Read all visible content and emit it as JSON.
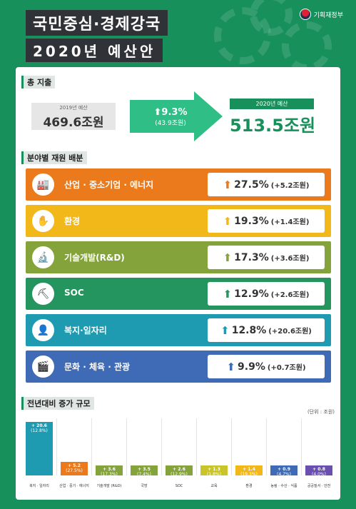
{
  "header": {
    "title_line1": "국민중심·경제강국",
    "title_line2": "2020년 예산안",
    "ministry": "기획재정부"
  },
  "total": {
    "section_label": "총 지출",
    "prev_label": "2019년 예산",
    "prev_value": "469.6조원",
    "change_pct": "9.3%",
    "change_amt": "(43.9조원)",
    "curr_label": "2020년 예산",
    "curr_value": "513.5조원"
  },
  "sectors_label": "분야별 재원 배분",
  "categories": [
    {
      "name": "산업 · 중소기업 · 에너지",
      "pct": "27.5%",
      "amt": "(+5.2조원)",
      "color": "#ea7a1b",
      "icon": "factory-icon"
    },
    {
      "name": "환경",
      "pct": "19.3%",
      "amt": "(+1.4조원)",
      "color": "#f2b81a",
      "icon": "leaf-hand-icon"
    },
    {
      "name": "기술개발(R&D)",
      "pct": "17.3%",
      "amt": "(+3.6조원)",
      "color": "#84a33b",
      "icon": "microscope-icon"
    },
    {
      "name": "SOC",
      "pct": "12.9%",
      "amt": "(+2.6조원)",
      "color": "#24955e",
      "icon": "excavator-icon"
    },
    {
      "name": "복지·일자리",
      "pct": "12.8%",
      "amt": "(+20.6조원)",
      "color": "#1e9bb0",
      "icon": "person-icon"
    },
    {
      "name": "문화 · 체육 · 관광",
      "pct": "9.9%",
      "amt": "(+0.7조원)",
      "color": "#3f6ab5",
      "icon": "film-icon"
    }
  ],
  "chart_data": {
    "type": "bar",
    "title": "전년대비 증가 규모",
    "unit": "(단위 : 조원)",
    "categories": [
      "복지 · 일자리",
      "산업 · 중기 · 에너지",
      "기술개발 (R&D)",
      "국방",
      "SOC",
      "교육",
      "환경",
      "농림 · 수산 · 식품",
      "공공질서 · 안전"
    ],
    "values": [
      20.6,
      5.2,
      3.6,
      3.5,
      2.6,
      1.3,
      1.4,
      0.9,
      0.8
    ],
    "value_labels": [
      "+ 20.6",
      "+ 5.2",
      "+ 3.6",
      "+ 3.5",
      "+ 2.6",
      "+ 1.3",
      "+ 1.4",
      "+ 0.9",
      "+ 0.8"
    ],
    "pct_labels": [
      "(12.8%)",
      "(27.5%)",
      "(17.3%)",
      "(7.4%)",
      "(12.9%)",
      "(1.8%)",
      "(19.3%)",
      "(4.7%)",
      "(4.0%)"
    ],
    "colors": [
      "#1e9bb0",
      "#ea7a1b",
      "#84a33b",
      "#84a33b",
      "#84a33b",
      "#c9c42a",
      "#f2b81a",
      "#3f6ab5",
      "#6a4fb0"
    ]
  }
}
